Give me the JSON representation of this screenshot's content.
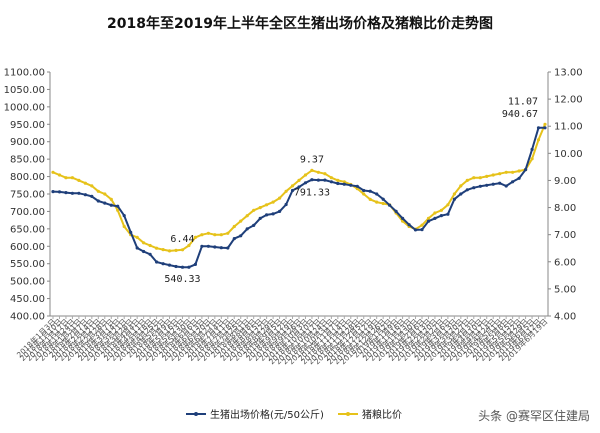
{
  "chart_data": {
    "type": "line",
    "title": "2018年至2019年上半年全区生猪出场价格及猪粮比价走势图",
    "left_axis": {
      "min": 400,
      "max": 1100,
      "step": 50,
      "ticks": [
        "1100.00",
        "1050.00",
        "1000.00",
        "950.00",
        "900.00",
        "850.00",
        "800.00",
        "750.00",
        "700.00",
        "650.00",
        "600.00",
        "550.00",
        "500.00",
        "450.00",
        "400.00"
      ]
    },
    "right_axis": {
      "min": 4,
      "max": 13,
      "step": 1,
      "ticks": [
        "13.00",
        "12.00",
        "11.00",
        "10.00",
        "9.00",
        "8.00",
        "7.00",
        "6.00",
        "5.00",
        "4.00"
      ]
    },
    "x_tick_labels": [
      "2018年1月3日",
      "2018年1月10日",
      "2018年1月17日",
      "2018年1月24日",
      "2018年1月31日",
      "2018年2月7日",
      "2018年2月14日",
      "2018年2月21日",
      "2018年2月28日",
      "2018年3月7日",
      "2018年3月14日",
      "2018年3月21日",
      "2018年3月28日",
      "2018年4月4日",
      "2018年4月11日",
      "2018年4月18日",
      "2018年4月25日",
      "2018年5月2日",
      "2018年5月9日",
      "2018年5月16日",
      "2018年5月23日",
      "2018年5月30日",
      "2018年6月6日",
      "2018年6月13日",
      "2018年6月20日",
      "2018年6月27日",
      "2018年7月4日",
      "2018年7月11日",
      "2018年7月18日",
      "2018年7月25日",
      "2018年8月1日",
      "2018年8月8日",
      "2018年8月15日",
      "2018年8月22日",
      "2018年8月29日",
      "2018年9月5日",
      "2018年9月12日",
      "2018年9月19日",
      "2018年9月26日",
      "2018年10月3日",
      "2018年10月10日",
      "2018年10月17日",
      "2018年10月24日",
      "2018年10月31日",
      "2018年11月7日",
      "2018年11月14日",
      "2018年11月21日",
      "2018年11月28日",
      "2018年12月5日",
      "2018年12月12日",
      "2018年12月19日",
      "2018年12月26日",
      "2019年1月2日",
      "2019年1月9日",
      "2019年1月16日",
      "2019年1月23日",
      "2019年1月30日",
      "2019年2月6日",
      "2019年2月13日",
      "2019年2月20日",
      "2019年2月27日",
      "2019年3月6日",
      "2019年3月13日",
      "2019年3月20日",
      "2019年3月27日",
      "2019年4月3日",
      "2019年4月10日",
      "2019年4月17日",
      "2019年4月24日",
      "2019年5月1日",
      "2019年5月8日",
      "2019年5月15日",
      "2019年5月22日",
      "2019年5月29日",
      "2019年6月5日",
      "2019年6月12日",
      "2019年6月19日"
    ],
    "series": [
      {
        "name": "生猪出场价格(元/50公斤)",
        "axis": "left",
        "color": "#1f3f7a",
        "values": [
          757,
          756,
          754,
          752,
          752,
          748,
          743,
          730,
          724,
          718,
          715,
          688,
          640,
          595,
          585,
          577,
          555,
          550,
          546,
          542,
          540,
          540,
          548,
          600,
          600,
          598,
          596,
          595,
          622,
          630,
          650,
          660,
          680,
          690,
          693,
          700,
          720,
          760,
          770,
          782,
          791,
          790,
          790,
          785,
          780,
          778,
          775,
          772,
          760,
          758,
          750,
          735,
          718,
          700,
          680,
          662,
          647,
          648,
          672,
          680,
          688,
          692,
          735,
          750,
          762,
          768,
          772,
          775,
          778,
          781,
          773,
          785,
          795,
          820,
          878,
          940,
          940
        ]
      },
      {
        "name": "猪粮比价",
        "axis": "right",
        "color": "#e6c21a",
        "values": [
          9.3,
          9.2,
          9.1,
          9.1,
          9.0,
          8.9,
          8.8,
          8.6,
          8.5,
          8.3,
          7.9,
          7.3,
          7.0,
          6.9,
          6.7,
          6.6,
          6.5,
          6.45,
          6.4,
          6.42,
          6.44,
          6.6,
          6.9,
          7.0,
          7.05,
          7.0,
          7.0,
          7.05,
          7.3,
          7.5,
          7.7,
          7.9,
          8.0,
          8.1,
          8.2,
          8.35,
          8.6,
          8.8,
          9.0,
          9.2,
          9.37,
          9.3,
          9.25,
          9.1,
          9.0,
          8.95,
          8.85,
          8.7,
          8.5,
          8.3,
          8.2,
          8.15,
          8.1,
          7.8,
          7.5,
          7.3,
          7.2,
          7.35,
          7.6,
          7.8,
          7.9,
          8.1,
          8.5,
          8.8,
          9.0,
          9.1,
          9.1,
          9.15,
          9.2,
          9.25,
          9.3,
          9.3,
          9.35,
          9.4,
          9.8,
          10.5,
          11.07
        ]
      }
    ],
    "annotations": [
      {
        "series": 1,
        "index": 20,
        "text": "6.44"
      },
      {
        "series": 0,
        "index": 20,
        "text": "540.33"
      },
      {
        "series": 1,
        "index": 40,
        "text": "9.37"
      },
      {
        "series": 0,
        "index": 40,
        "text": "791.33"
      },
      {
        "series": 1,
        "index": 76,
        "text": "11.07"
      },
      {
        "series": 0,
        "index": 76,
        "text": "940.67"
      }
    ],
    "grid": false,
    "legend_position": "bottom"
  },
  "legend": {
    "items": [
      {
        "label": "生猪出场价格(元/50公斤)",
        "color": "#1f3f7a"
      },
      {
        "label": "猪粮比价",
        "color": "#e6c21a"
      }
    ]
  },
  "watermark": "头条 @赛罕区住建局"
}
